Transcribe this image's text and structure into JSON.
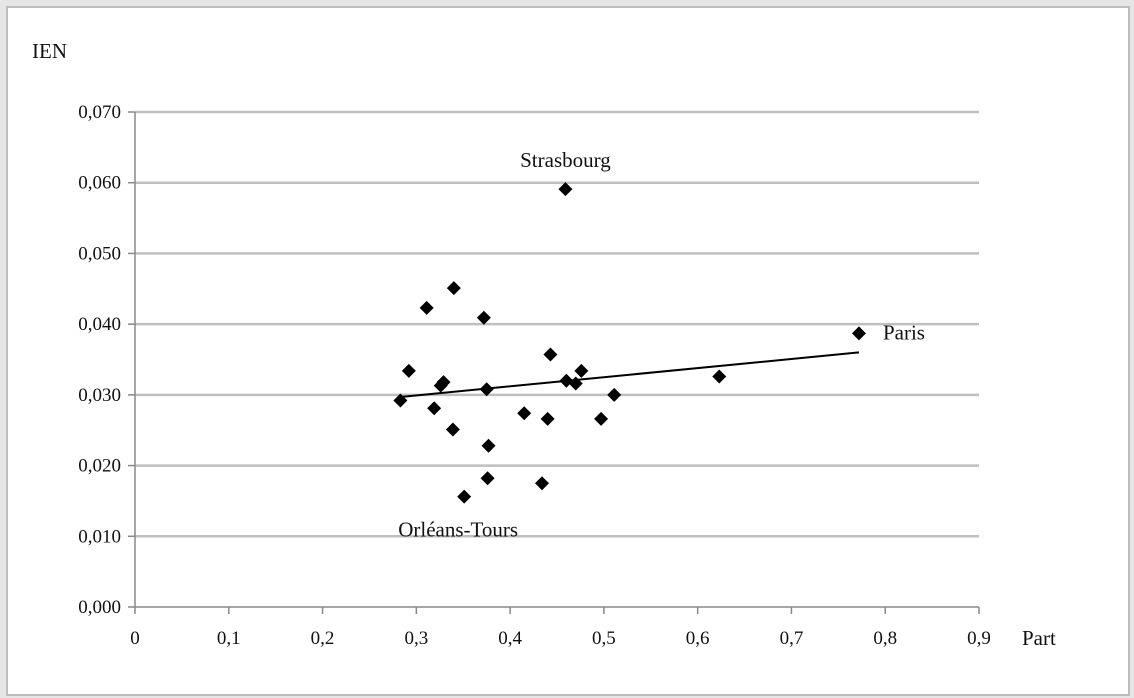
{
  "chart_data": {
    "type": "scatter",
    "ylabel": "IEN",
    "xlabel": "Part",
    "xlim": [
      0,
      0.9
    ],
    "ylim": [
      0,
      0.07
    ],
    "x_ticks": [
      "0",
      "0,1",
      "0,2",
      "0,3",
      "0,4",
      "0,5",
      "0,6",
      "0,7",
      "0,8",
      "0,9"
    ],
    "x_tick_values": [
      0,
      0.1,
      0.2,
      0.3,
      0.4,
      0.5,
      0.6,
      0.7,
      0.8,
      0.9
    ],
    "y_ticks": [
      "0,000",
      "0,010",
      "0,020",
      "0,030",
      "0,040",
      "0,050",
      "0,060",
      "0,070"
    ],
    "y_tick_values": [
      0,
      0.01,
      0.02,
      0.03,
      0.04,
      0.05,
      0.06,
      0.07
    ],
    "horizontal_grid": true,
    "marker": "diamond",
    "points": [
      {
        "x": 0.283,
        "y": 0.0292
      },
      {
        "x": 0.292,
        "y": 0.0334
      },
      {
        "x": 0.311,
        "y": 0.0423
      },
      {
        "x": 0.319,
        "y": 0.0281
      },
      {
        "x": 0.326,
        "y": 0.0313
      },
      {
        "x": 0.329,
        "y": 0.0318
      },
      {
        "x": 0.339,
        "y": 0.0251
      },
      {
        "x": 0.34,
        "y": 0.0451
      },
      {
        "x": 0.351,
        "y": 0.0156
      },
      {
        "x": 0.372,
        "y": 0.0409
      },
      {
        "x": 0.375,
        "y": 0.0308
      },
      {
        "x": 0.376,
        "y": 0.0182
      },
      {
        "x": 0.377,
        "y": 0.0228
      },
      {
        "x": 0.415,
        "y": 0.0274
      },
      {
        "x": 0.434,
        "y": 0.0175
      },
      {
        "x": 0.44,
        "y": 0.0266
      },
      {
        "x": 0.443,
        "y": 0.0357
      },
      {
        "x": 0.459,
        "y": 0.0591
      },
      {
        "x": 0.46,
        "y": 0.032
      },
      {
        "x": 0.47,
        "y": 0.0316
      },
      {
        "x": 0.476,
        "y": 0.0334
      },
      {
        "x": 0.497,
        "y": 0.0266
      },
      {
        "x": 0.511,
        "y": 0.03
      },
      {
        "x": 0.623,
        "y": 0.0326
      },
      {
        "x": 0.772,
        "y": 0.0387
      }
    ],
    "trendline": {
      "x": [
        0.283,
        0.772
      ],
      "y": [
        0.0297,
        0.036
      ]
    },
    "annotations": [
      {
        "text": "Strasbourg",
        "x": 0.459,
        "y": 0.0591
      },
      {
        "text": "Paris",
        "x": 0.772,
        "y": 0.0387
      },
      {
        "text": "Orléans-Tours",
        "x": 0.351,
        "y": 0.0156
      }
    ],
    "colors": {
      "marker": "#000000",
      "grid": "#bfbfbf",
      "axis": "#888888",
      "trendline": "#000000"
    }
  }
}
